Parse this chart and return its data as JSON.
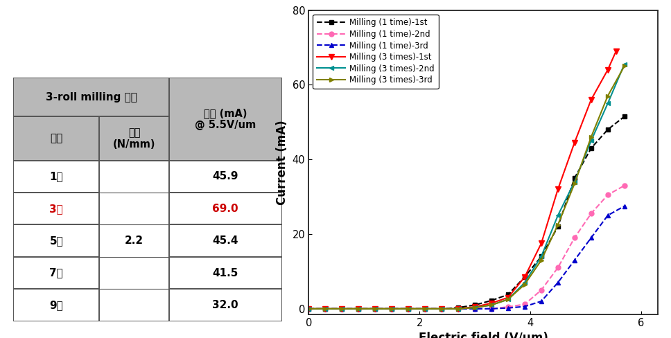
{
  "table": {
    "main_header": "3-roll milling 공정",
    "col1_header": "횟수",
    "col2_header": "강도\n(N/mm)",
    "col3_header": "전류 (mA)\n@ 5.5V/um",
    "rows": [
      {
        "label": "1회",
        "strength": "",
        "current": "45.9",
        "highlight": false
      },
      {
        "label": "3회",
        "strength": "",
        "current": "69.0",
        "highlight": true
      },
      {
        "label": "5회",
        "strength": "2.2",
        "current": "45.4",
        "highlight": false
      },
      {
        "label": "7회",
        "strength": "",
        "current": "41.5",
        "highlight": false
      },
      {
        "label": "9회",
        "strength": "",
        "current": "32.0",
        "highlight": false
      }
    ],
    "highlight_color": "#cc0000",
    "header_bg": "#b8b8b8",
    "cell_bg": "#ffffff",
    "grid_color": "#555555"
  },
  "plot": {
    "xlabel": "Electric field (V/μm)",
    "ylabel": "Current (mA)",
    "xlim": [
      0,
      6.3
    ],
    "ylim": [
      -1.5,
      80
    ],
    "xticks": [
      0,
      2,
      4,
      6
    ],
    "yticks": [
      0,
      20,
      40,
      60,
      80
    ],
    "series": [
      {
        "label": "Milling (1 time)-1st",
        "color": "#000000",
        "linestyle": "--",
        "marker": "s",
        "markersize": 5,
        "x": [
          0.0,
          0.3,
          0.6,
          0.9,
          1.2,
          1.5,
          1.8,
          2.1,
          2.4,
          2.7,
          3.0,
          3.3,
          3.6,
          3.9,
          4.2,
          4.5,
          4.8,
          5.1,
          5.4,
          5.7
        ],
        "y": [
          0.0,
          0.0,
          0.0,
          0.0,
          0.0,
          0.0,
          0.0,
          0.0,
          0.0,
          0.3,
          1.0,
          2.2,
          3.8,
          8.5,
          14.0,
          22.0,
          35.0,
          43.0,
          48.0,
          51.5
        ]
      },
      {
        "label": "Milling (1 time)-2nd",
        "color": "#ff69b4",
        "linestyle": "--",
        "marker": "o",
        "markersize": 5,
        "x": [
          0.0,
          0.3,
          0.6,
          0.9,
          1.2,
          1.5,
          1.8,
          2.1,
          2.4,
          2.7,
          3.0,
          3.3,
          3.6,
          3.9,
          4.2,
          4.5,
          4.8,
          5.1,
          5.4,
          5.7
        ],
        "y": [
          0.0,
          0.0,
          0.0,
          0.0,
          0.0,
          0.0,
          0.0,
          0.0,
          0.0,
          0.0,
          0.0,
          0.0,
          0.5,
          1.2,
          5.0,
          11.0,
          19.0,
          25.5,
          30.5,
          33.0
        ]
      },
      {
        "label": "Milling (1 time)-3rd",
        "color": "#0000cc",
        "linestyle": "--",
        "marker": "^",
        "markersize": 5,
        "x": [
          0.0,
          0.3,
          0.6,
          0.9,
          1.2,
          1.5,
          1.8,
          2.1,
          2.4,
          2.7,
          3.0,
          3.3,
          3.6,
          3.9,
          4.2,
          4.5,
          4.8,
          5.1,
          5.4,
          5.7
        ],
        "y": [
          0.0,
          0.0,
          0.0,
          0.0,
          0.0,
          0.0,
          0.0,
          0.0,
          0.0,
          0.0,
          0.0,
          0.0,
          0.2,
          0.6,
          2.0,
          7.0,
          13.0,
          19.0,
          25.0,
          27.5
        ]
      },
      {
        "label": "Milling (3 times)-1st",
        "color": "#ff0000",
        "linestyle": "-",
        "marker": "v",
        "markersize": 6,
        "x": [
          0.0,
          0.3,
          0.6,
          0.9,
          1.2,
          1.5,
          1.8,
          2.1,
          2.4,
          2.7,
          3.0,
          3.3,
          3.6,
          3.9,
          4.2,
          4.5,
          4.8,
          5.1,
          5.4,
          5.55
        ],
        "y": [
          0.0,
          0.0,
          0.0,
          0.0,
          0.0,
          0.0,
          0.0,
          0.0,
          0.0,
          0.0,
          0.5,
          1.5,
          3.0,
          8.5,
          17.5,
          32.0,
          44.5,
          56.0,
          64.0,
          69.0
        ]
      },
      {
        "label": "Milling (3 times)-2nd",
        "color": "#009090",
        "linestyle": "-",
        "marker": "<",
        "markersize": 5,
        "x": [
          0.0,
          0.3,
          0.6,
          0.9,
          1.2,
          1.5,
          1.8,
          2.1,
          2.4,
          2.7,
          3.0,
          3.3,
          3.6,
          3.9,
          4.2,
          4.5,
          4.8,
          5.1,
          5.4,
          5.7
        ],
        "y": [
          0.0,
          0.0,
          0.0,
          0.0,
          0.0,
          0.0,
          0.0,
          0.0,
          0.0,
          0.0,
          0.3,
          1.0,
          2.5,
          7.0,
          14.0,
          25.0,
          34.0,
          45.0,
          55.0,
          65.5
        ]
      },
      {
        "label": "Milling (3 times)-3rd",
        "color": "#808000",
        "linestyle": "-",
        "marker": ">",
        "markersize": 5,
        "x": [
          0.0,
          0.3,
          0.6,
          0.9,
          1.2,
          1.5,
          1.8,
          2.1,
          2.4,
          2.7,
          3.0,
          3.3,
          3.6,
          3.9,
          4.2,
          4.5,
          4.8,
          5.1,
          5.4,
          5.7
        ],
        "y": [
          0.0,
          0.0,
          0.0,
          0.0,
          0.0,
          0.0,
          0.0,
          0.0,
          0.0,
          0.0,
          0.3,
          1.0,
          2.5,
          6.5,
          13.0,
          22.5,
          33.5,
          46.0,
          57.0,
          65.0
        ]
      }
    ]
  }
}
